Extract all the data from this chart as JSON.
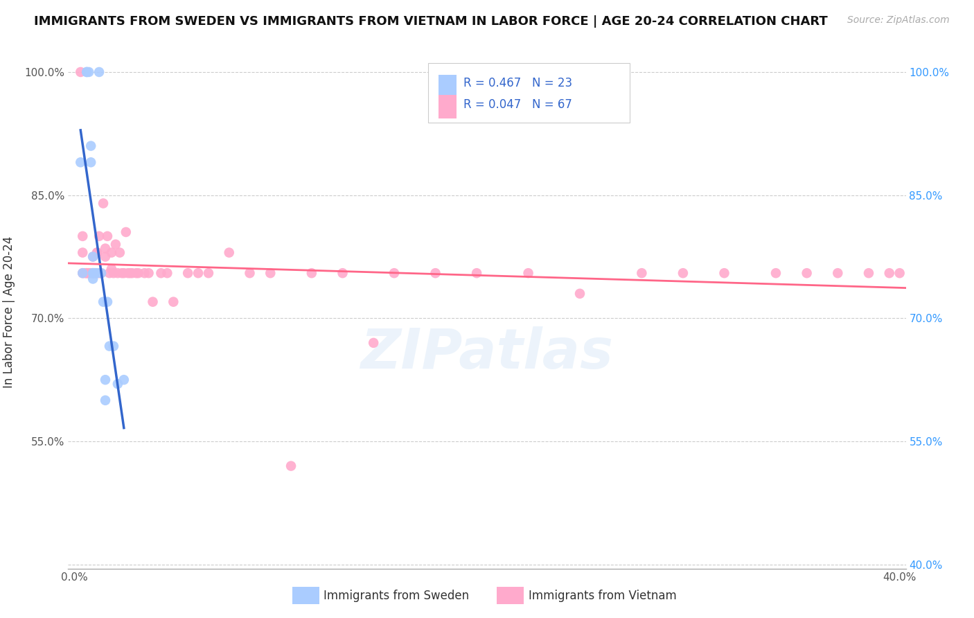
{
  "title": "IMMIGRANTS FROM SWEDEN VS IMMIGRANTS FROM VIETNAM IN LABOR FORCE | AGE 20-24 CORRELATION CHART",
  "source": "Source: ZipAtlas.com",
  "ylabel": "In Labor Force | Age 20-24",
  "legend_label1": "Immigrants from Sweden",
  "legend_label2": "Immigrants from Vietnam",
  "R1": 0.467,
  "N1": 23,
  "R2": 0.047,
  "N2": 67,
  "xlim": [
    -0.003,
    0.403
  ],
  "ylim": [
    0.395,
    1.02
  ],
  "xtick_positions": [
    0.0,
    0.05,
    0.1,
    0.15,
    0.2,
    0.25,
    0.3,
    0.35,
    0.4
  ],
  "ytick_positions": [
    0.4,
    0.55,
    0.7,
    0.85,
    1.0
  ],
  "ytick_labels_left": [
    "",
    "55.0%",
    "70.0%",
    "85.0%",
    "100.0%"
  ],
  "ytick_labels_right": [
    "40.0%",
    "55.0%",
    "70.0%",
    "85.0%",
    "100.0%"
  ],
  "xtick_labels": [
    "0.0%",
    "",
    "",
    "",
    "",
    "",
    "",
    "",
    "40.0%"
  ],
  "color_sweden": "#aaccff",
  "color_vietnam": "#ffaacc",
  "line_color_sweden": "#3366cc",
  "line_color_vietnam": "#ff6688",
  "watermark": "ZIPatlas",
  "sweden_x": [
    0.003,
    0.004,
    0.006,
    0.006,
    0.007,
    0.008,
    0.008,
    0.009,
    0.009,
    0.009,
    0.009,
    0.01,
    0.011,
    0.012,
    0.013,
    0.014,
    0.015,
    0.015,
    0.016,
    0.017,
    0.019,
    0.021,
    0.024
  ],
  "sweden_y": [
    0.89,
    0.755,
    1.0,
    1.0,
    1.0,
    0.89,
    0.91,
    0.775,
    0.755,
    0.755,
    0.748,
    0.755,
    0.755,
    1.0,
    0.755,
    0.72,
    0.625,
    0.6,
    0.72,
    0.666,
    0.666,
    0.62,
    0.625
  ],
  "vietnam_x": [
    0.003,
    0.004,
    0.004,
    0.004,
    0.005,
    0.006,
    0.006,
    0.007,
    0.007,
    0.008,
    0.009,
    0.009,
    0.01,
    0.011,
    0.011,
    0.012,
    0.012,
    0.013,
    0.014,
    0.015,
    0.015,
    0.016,
    0.017,
    0.018,
    0.018,
    0.019,
    0.02,
    0.021,
    0.022,
    0.023,
    0.024,
    0.025,
    0.026,
    0.027,
    0.028,
    0.03,
    0.031,
    0.034,
    0.036,
    0.038,
    0.042,
    0.045,
    0.048,
    0.055,
    0.06,
    0.065,
    0.075,
    0.085,
    0.095,
    0.105,
    0.115,
    0.13,
    0.145,
    0.155,
    0.175,
    0.195,
    0.22,
    0.245,
    0.275,
    0.295,
    0.315,
    0.34,
    0.355,
    0.37,
    0.385,
    0.395,
    0.4
  ],
  "vietnam_y": [
    1.0,
    0.8,
    0.78,
    0.755,
    0.755,
    0.755,
    0.755,
    0.755,
    0.755,
    0.755,
    0.775,
    0.755,
    0.755,
    0.78,
    0.78,
    0.755,
    0.8,
    0.755,
    0.84,
    0.785,
    0.775,
    0.8,
    0.755,
    0.76,
    0.78,
    0.755,
    0.79,
    0.755,
    0.78,
    0.755,
    0.755,
    0.805,
    0.755,
    0.755,
    0.755,
    0.755,
    0.755,
    0.755,
    0.755,
    0.72,
    0.755,
    0.755,
    0.72,
    0.755,
    0.755,
    0.755,
    0.78,
    0.755,
    0.755,
    0.52,
    0.755,
    0.755,
    0.67,
    0.755,
    0.755,
    0.755,
    0.755,
    0.73,
    0.755,
    0.755,
    0.755,
    0.755,
    0.755,
    0.755,
    0.755,
    0.755,
    0.755
  ]
}
